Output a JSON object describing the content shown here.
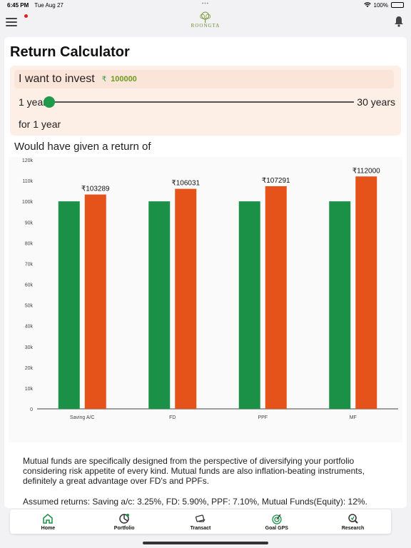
{
  "status": {
    "time": "6:45 PM",
    "date": "Tue Aug 27",
    "battery": "100%"
  },
  "app": {
    "logo_text": "ROONGTA"
  },
  "calculator": {
    "title": "Return Calculator",
    "invest_label": "I want to invest",
    "currency_symbol": "₹",
    "amount": "100000",
    "slider_min_label": "1 year",
    "slider_max_label": "30 years",
    "slider_value_years": 1,
    "period_label": "for 1 year",
    "return_label": "Would have given a return of"
  },
  "chart_data": {
    "type": "bar",
    "categories": [
      "Saving A/C",
      "FD",
      "PPF",
      "MF"
    ],
    "series": [
      {
        "color": "#1a9147",
        "values": [
          100000,
          100000,
          100000,
          100000
        ]
      },
      {
        "color": "#e5531a",
        "values": [
          103289,
          106031,
          107291,
          112000
        ]
      }
    ],
    "data_labels": [
      "₹103289",
      "₹106031",
      "₹107291",
      "₹112000"
    ],
    "yticks": [
      "0",
      "10k",
      "20k",
      "30k",
      "40k",
      "50k",
      "60k",
      "70k",
      "80k",
      "90k",
      "100k",
      "110k",
      "120k"
    ],
    "ylim": [
      0,
      120000
    ],
    "grid": false
  },
  "description": "Mutual funds are specifically designed from the perspective of diversifying your portfolio considering risk appetite of every kind. Mutual funds are also inflation-beating instruments, definitely a great advantage over FD's and PPFs.",
  "assumed_returns": "Assumed returns: Saving a/c: 3.25%, FD: 5.90%, PPF: 7.10%, Mutual Funds(Equity): 12%.",
  "tabs": [
    {
      "label": "Home",
      "icon": "home-icon"
    },
    {
      "label": "Portfolio",
      "icon": "portfolio-icon"
    },
    {
      "label": "Transact",
      "icon": "transact-icon"
    },
    {
      "label": "Goal GPS",
      "icon": "goal-gps-icon"
    },
    {
      "label": "Research",
      "icon": "research-icon"
    }
  ],
  "colors": {
    "accent_green": "#1a9147",
    "accent_orange": "#e5531a",
    "invest_bg": "#fdeee6"
  }
}
